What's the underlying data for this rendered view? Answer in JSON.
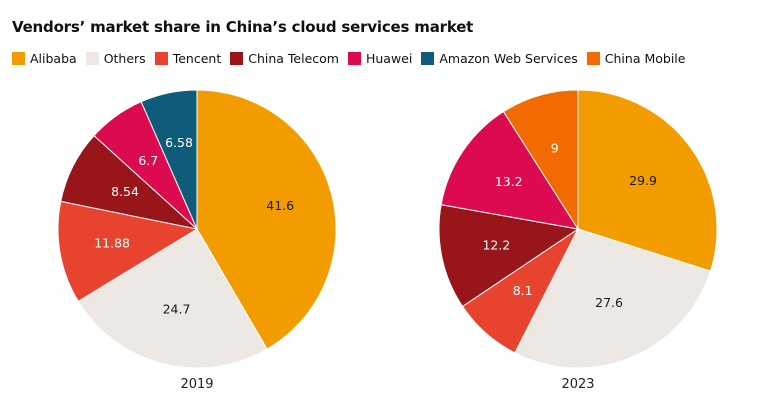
{
  "title": "Vendors’ market share in China’s cloud services market",
  "legend": [
    {
      "label": "Alibaba",
      "color": "#F39C00"
    },
    {
      "label": "Others",
      "color": "#EDE8E3"
    },
    {
      "label": "Tencent",
      "color": "#E8432E"
    },
    {
      "label": "China Telecom",
      "color": "#98151A"
    },
    {
      "label": "Huawei",
      "color": "#DC0A4F"
    },
    {
      "label": "Amazon Web Services",
      "color": "#0E5C79"
    },
    {
      "label": "China Mobile",
      "color": "#F26B00"
    }
  ],
  "chart_data": [
    {
      "type": "pie",
      "title": "2019",
      "slices": [
        {
          "label": "Alibaba",
          "value": 41.6,
          "display": "41.6"
        },
        {
          "label": "Others",
          "value": 24.7,
          "display": "24.7"
        },
        {
          "label": "Tencent",
          "value": 11.88,
          "display": "11.88"
        },
        {
          "label": "China Telecom",
          "value": 8.54,
          "display": "8.54"
        },
        {
          "label": "Huawei",
          "value": 6.7,
          "display": "6.7"
        },
        {
          "label": "Amazon Web Services",
          "value": 6.58,
          "display": "6.58"
        }
      ]
    },
    {
      "type": "pie",
      "title": "2023",
      "slices": [
        {
          "label": "Alibaba",
          "value": 29.9,
          "display": "29.9"
        },
        {
          "label": "Others",
          "value": 27.6,
          "display": "27.6"
        },
        {
          "label": "Tencent",
          "value": 8.1,
          "display": "8.1"
        },
        {
          "label": "China Telecom",
          "value": 12.2,
          "display": "12.2"
        },
        {
          "label": "Huawei",
          "value": 13.2,
          "display": "13.2"
        },
        {
          "label": "China Mobile",
          "value": 9,
          "display": "9"
        }
      ]
    }
  ]
}
